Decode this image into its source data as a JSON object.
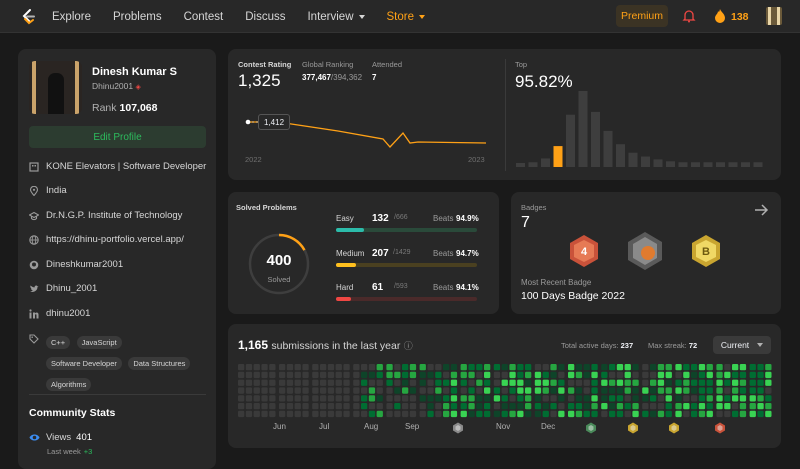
{
  "nav": {
    "items": [
      {
        "label": "Explore"
      },
      {
        "label": "Problems"
      },
      {
        "label": "Contest"
      },
      {
        "label": "Discuss"
      },
      {
        "label": "Interview"
      },
      {
        "label": "Store"
      }
    ],
    "premium_label": "Premium",
    "streak_count": "138",
    "icons": [
      "leetcode-logo",
      "bell-icon",
      "flame-icon",
      "avatar"
    ]
  },
  "profile": {
    "name": "Dinesh Kumar S",
    "username": "Dhinu2001",
    "rank_label": "Rank",
    "rank_value": "107,068",
    "edit_label": "Edit Profile",
    "work": "KONE Elevators | Software Developer",
    "location": "India",
    "school": "Dr.N.G.P. Institute of Technology",
    "website": "https://dhinu-portfolio.vercel.app/",
    "github": "Dineshkumar2001",
    "twitter": "Dhinu_2001",
    "linkedin": "dhinu2001",
    "skills": [
      "C++",
      "JavaScript",
      "Software Developer",
      "Data Structures",
      "Algorithms"
    ]
  },
  "community": {
    "title": "Community Stats",
    "views_label": "Views",
    "views_value": "401",
    "last_week_label": "Last week",
    "last_week_value": "+3"
  },
  "contest": {
    "rating_label": "Contest Rating",
    "rating_value": "1,325",
    "global_label": "Global Ranking",
    "global_rank": "377,467",
    "global_total": "/394,362",
    "attended_label": "Attended",
    "attended_value": "7",
    "tooltip": "1,412",
    "year_start": "2022",
    "year_end": "2023",
    "top_label": "Top",
    "top_value": "95.82%",
    "histogram": [
      2,
      5,
      9,
      22,
      55,
      80,
      58,
      38,
      24,
      15,
      11,
      8,
      6,
      5,
      5,
      5,
      5,
      5,
      5,
      5
    ],
    "highlight_index": 3
  },
  "solved": {
    "title": "Solved Problems",
    "total": "400",
    "total_label": "Solved",
    "beats_label": "Beats",
    "progress": 0.17,
    "difficulties": [
      {
        "name": "Easy",
        "count": "132",
        "total": "/666",
        "beats": "94.9%",
        "fill": 0.198,
        "color": "#2cbcaa",
        "track": "#2a4a3a"
      },
      {
        "name": "Medium",
        "count": "207",
        "total": "/1429",
        "beats": "94.7%",
        "fill": 0.145,
        "color": "#ffc01e",
        "track": "#4a4020"
      },
      {
        "name": "Hard",
        "count": "61",
        "total": "/593",
        "beats": "94.1%",
        "fill": 0.103,
        "color": "#ef4743",
        "track": "#4a2a2a"
      }
    ]
  },
  "badges": {
    "title": "Badges",
    "count": "7",
    "recent_label": "Most Recent Badge",
    "recent_name": "100 Days Badge 2022",
    "arrow_icon": "arrow-right-icon"
  },
  "submissions": {
    "count": "1,165",
    "label": "submissions in the last year",
    "active_label": "Total active days:",
    "active_value": "237",
    "streak_label": "Max streak:",
    "streak_value": "72",
    "select_value": "Current",
    "months": [
      "Jun",
      "Jul",
      "Aug",
      "Sep",
      "Nov",
      "Dec"
    ]
  }
}
